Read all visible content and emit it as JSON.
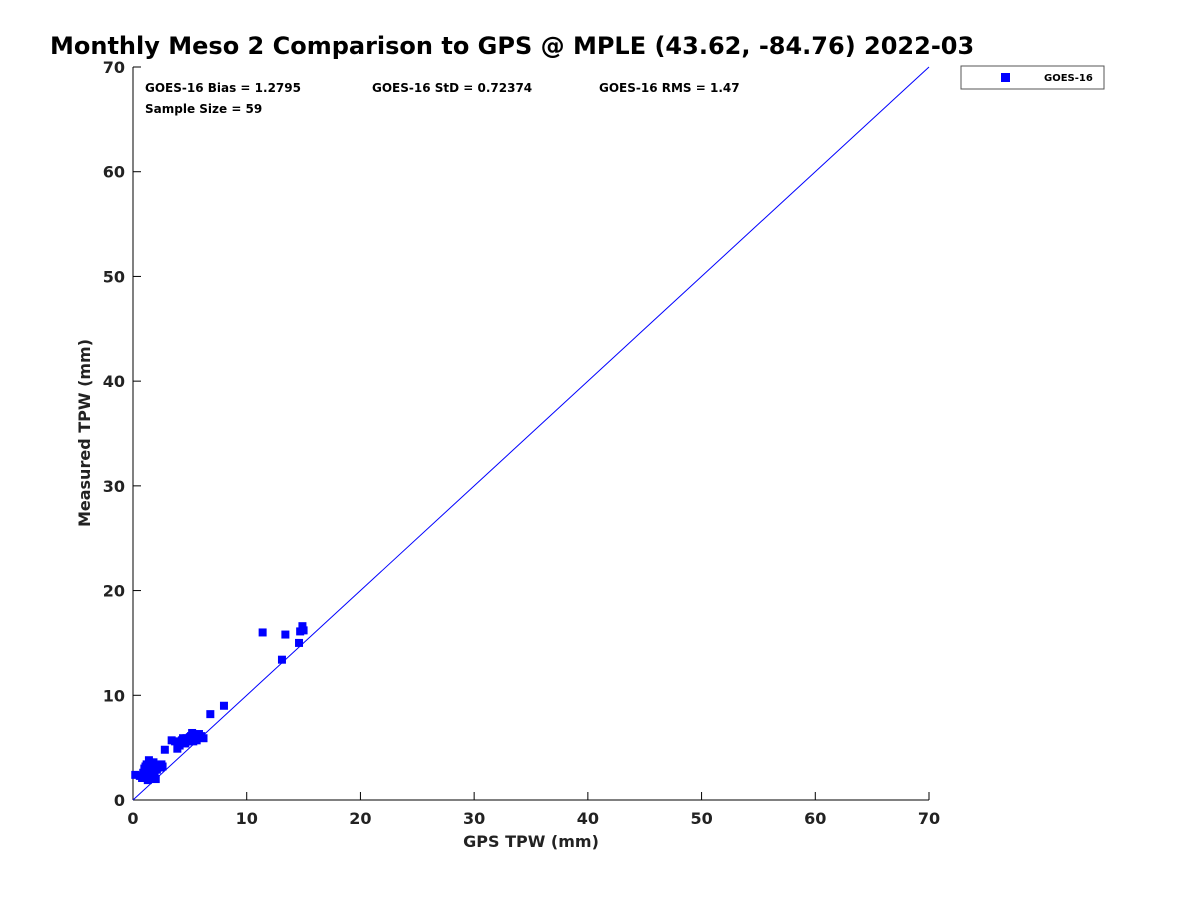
{
  "chart_data": {
    "type": "scatter",
    "title": "Monthly Meso 2 Comparison to GPS @ MPLE (43.62, -84.76) 2022-03",
    "xlabel": "GPS TPW (mm)",
    "ylabel": "Measured TPW (mm)",
    "xlim": [
      0,
      70
    ],
    "ylim": [
      0,
      70
    ],
    "xticks": [
      "0",
      "10",
      "20",
      "30",
      "40",
      "50",
      "60",
      "70"
    ],
    "yticks": [
      "0",
      "10",
      "20",
      "30",
      "40",
      "50",
      "60",
      "70"
    ],
    "grid": false,
    "legend_position": "outside-top-right",
    "reference_line": {
      "x": [
        0,
        70
      ],
      "y": [
        0,
        70
      ],
      "color": "#0000ff"
    },
    "stats": {
      "bias": "GOES-16 Bias = 1.2795",
      "std": "GOES-16 StD = 0.72374",
      "rms": "GOES-16 RMS = 1.47",
      "sample_size": "Sample Size = 59"
    },
    "series": [
      {
        "name": "GOES-16",
        "color": "#0000ff",
        "marker": "square",
        "points": [
          [
            0.2,
            2.4
          ],
          [
            0.6,
            2.3
          ],
          [
            0.8,
            2.1
          ],
          [
            1.0,
            2.5
          ],
          [
            1.0,
            3.0
          ],
          [
            1.1,
            2.2
          ],
          [
            1.2,
            3.4
          ],
          [
            1.3,
            1.9
          ],
          [
            1.4,
            2.8
          ],
          [
            1.4,
            3.8
          ],
          [
            1.5,
            2.1
          ],
          [
            1.6,
            2.6
          ],
          [
            1.7,
            3.1
          ],
          [
            1.8,
            3.6
          ],
          [
            1.9,
            2.3
          ],
          [
            2.0,
            2.0
          ],
          [
            2.1,
            2.9
          ],
          [
            2.2,
            3.3
          ],
          [
            2.4,
            3.1
          ],
          [
            2.6,
            3.2
          ],
          [
            2.8,
            4.8
          ],
          [
            3.4,
            5.7
          ],
          [
            3.7,
            5.6
          ],
          [
            3.9,
            4.9
          ],
          [
            4.1,
            5.2
          ],
          [
            4.3,
            5.7
          ],
          [
            4.5,
            5.5
          ],
          [
            4.7,
            5.9
          ],
          [
            4.9,
            5.6
          ],
          [
            5.1,
            6.1
          ],
          [
            5.2,
            6.4
          ],
          [
            5.4,
            5.9
          ],
          [
            5.6,
            5.7
          ],
          [
            5.8,
            6.3
          ],
          [
            6.0,
            6.1
          ],
          [
            6.2,
            5.9
          ],
          [
            6.8,
            8.2
          ],
          [
            8.0,
            9.0
          ],
          [
            11.4,
            16.0
          ],
          [
            13.1,
            13.4
          ],
          [
            13.4,
            15.8
          ],
          [
            14.6,
            15.0
          ],
          [
            14.7,
            16.1
          ],
          [
            14.9,
            16.6
          ],
          [
            15.0,
            16.2
          ],
          [
            1.2,
            2.6
          ],
          [
            1.5,
            3.3
          ],
          [
            1.7,
            2.4
          ],
          [
            2.3,
            3.2
          ],
          [
            2.5,
            3.4
          ],
          [
            4.4,
            5.9
          ],
          [
            4.6,
            5.4
          ],
          [
            5.0,
            6.0
          ],
          [
            5.3,
            5.6
          ],
          [
            5.5,
            6.2
          ],
          [
            5.7,
            6.0
          ],
          [
            0.9,
            2.6
          ],
          [
            1.1,
            3.2
          ],
          [
            1.8,
            2.2
          ]
        ]
      }
    ]
  }
}
